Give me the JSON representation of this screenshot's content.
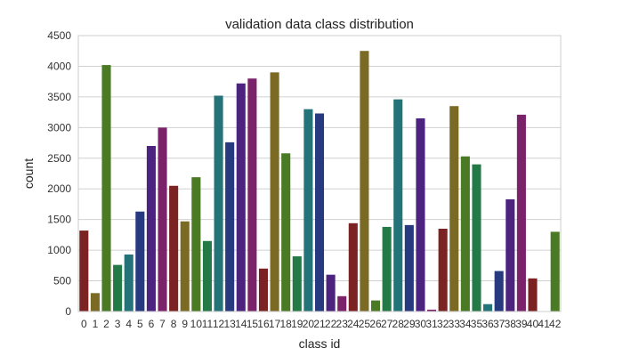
{
  "chart_data": {
    "type": "bar",
    "title": "validation data class distribution",
    "xlabel": "class id",
    "ylabel": "count",
    "ylim": [
      0,
      4500
    ],
    "yticks": [
      0,
      500,
      1000,
      1500,
      2000,
      2500,
      3000,
      3500,
      4000,
      4500
    ],
    "grid": true,
    "categories": [
      "0",
      "1",
      "2",
      "3",
      "4",
      "5",
      "6",
      "7",
      "8",
      "9",
      "10",
      "11",
      "12",
      "13",
      "14",
      "15",
      "16",
      "17",
      "18",
      "19",
      "20",
      "21",
      "22",
      "23",
      "24",
      "25",
      "26",
      "27",
      "28",
      "29",
      "30",
      "31",
      "32",
      "33",
      "34",
      "35",
      "36",
      "37",
      "38",
      "39",
      "40",
      "41",
      "42"
    ],
    "values": [
      1320,
      300,
      4020,
      760,
      930,
      1630,
      2700,
      3000,
      2050,
      1470,
      2190,
      1150,
      3520,
      2760,
      3720,
      3800,
      700,
      3900,
      2580,
      900,
      3300,
      3230,
      600,
      250,
      1440,
      4250,
      180,
      1380,
      3460,
      1410,
      3150,
      30,
      1350,
      3350,
      2530,
      2400,
      120,
      660,
      1830,
      3210,
      540,
      0,
      1300
    ],
    "colors": [
      "#7b2323",
      "#7b6a24",
      "#4a7a23",
      "#247a46",
      "#237378",
      "#273a80",
      "#4d2380",
      "#7a236b"
    ]
  }
}
